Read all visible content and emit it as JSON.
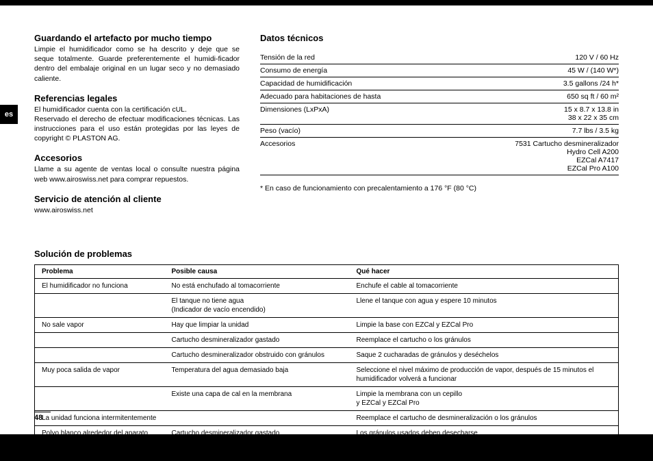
{
  "sideTab": "es",
  "pageNumber": "48",
  "left": {
    "sec1": {
      "title": "Guardando el artefacto por mucho tiempo",
      "body": "Limpie el humidificador como se ha descrito y deje que se seque totalmente. Guarde preferentemente el humidi-ficador dentro del embalaje original en un lugar seco y no demasiado caliente."
    },
    "sec2": {
      "title": "Referencias legales",
      "body": "El humidificador cuenta con la certificación cUL.\nReservado el derecho de efectuar modificaciones técnicas. Las instrucciones para el uso están protegidas por las leyes de copyright © PLASTON AG."
    },
    "sec3": {
      "title": "Accesorios",
      "body": "Llame a su agente de ventas local o consulte nuestra página web www.airoswiss.net para comprar repuestos."
    },
    "sec4": {
      "title": "Servicio de atención al cliente",
      "body": "www.airoswiss.net"
    }
  },
  "right": {
    "title": "Datos técnicos",
    "rows": [
      {
        "label": "Tensión de la red",
        "value": "120 V / 60 Hz"
      },
      {
        "label": "Consumo de energía",
        "value": "45 W / (140 W*)"
      },
      {
        "label": "Capacidad de humidificación",
        "value": "3.5 gallons /24 h*"
      },
      {
        "label": "Adecuado para habitaciones de hasta",
        "value": "650 sq ft / 60 m²"
      },
      {
        "label": "Dimensiones (LxPxA)",
        "value": "15 x 8.7 x 13.8 in\n38 x 22 x 35 cm"
      },
      {
        "label": "Peso (vacío)",
        "value": "7.7 lbs / 3.5 kg"
      },
      {
        "label": "Accesorios",
        "value": "7531 Cartucho desmineralizador\nHydro Cell A200\nEZCal A7417\nEZCal Pro A100"
      }
    ],
    "footnote": "*  En caso de funcionamiento con precalentamiento a 176 °F (80 °C)"
  },
  "troubleshoot": {
    "title": "Solución de problemas",
    "headers": {
      "problem": "Problema",
      "cause": "Posible causa",
      "action": "Qué hacer"
    },
    "rows": [
      {
        "p": "El humidificador no funciona",
        "c": "No está enchufado al tomacorriente",
        "a": "Enchufe el cable al tomacorriente",
        "sep": true
      },
      {
        "p": "",
        "c": "El tanque no tiene agua\n(Indicador de vacío encendido)",
        "a": "Llene el tanque con agua y espere 10 minutos",
        "sep": true
      },
      {
        "p": "No sale vapor",
        "c": "Hay que limpiar la unidad",
        "a": "Limpie la base con EZCal y EZCal Pro",
        "sep": true
      },
      {
        "p": "",
        "c": "Cartucho desmineralizador gastado",
        "a": "Reemplace el cartucho o los gránulos",
        "sep": true
      },
      {
        "p": "",
        "c": "Cartucho desmineralizador obstruido con gránulos",
        "a": "Saque 2 cucharadas de gránulos y deséchelos",
        "sep": true
      },
      {
        "p": "Muy poca salida de vapor",
        "c": "Temperatura del agua demasiado baja",
        "a": "Seleccione el nivel máximo de producción de vapor, después de 15 minutos el humidificador volverá a funcionar",
        "sep": true
      },
      {
        "p": "",
        "c": "Existe una capa de cal en la membrana",
        "a": "Limpie la membrana con un cepillo\ny EZCal y EZCal Pro",
        "sep": true
      },
      {
        "p": "La unidad funciona intermitentemente",
        "c": "",
        "a": "Reemplace el cartucho de desmineralización o los gránulos",
        "sep": true
      },
      {
        "p": "Polvo blanco alrededor del aparato",
        "c": "Cartucho desmineralizador gastado",
        "a": "Los gránulos usados deben desecharse",
        "sep": false
      }
    ]
  }
}
